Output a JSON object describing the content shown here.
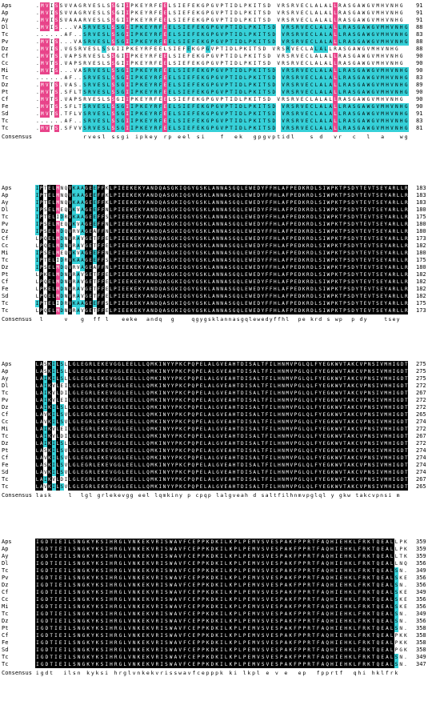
{
  "colors": {
    "identical": "#000000",
    "identical_text": "#ffffff",
    "high": "#e8448a",
    "high_text": "#ffffff",
    "medium": "#36d0d8",
    "medium_text": "#000000",
    "none": "#ffffff",
    "none_text": "#000000"
  },
  "consensus_label": "Consensus",
  "species": [
    "Aps",
    "Ap",
    "Ay",
    "Dl",
    "Tc",
    "Pv",
    "Dz",
    "Cf",
    "Cc",
    "Mi",
    "Tc",
    "Dz",
    "Pt",
    "Cf",
    "Fe",
    "Sd",
    "Tc",
    "Tc"
  ],
  "blocks": [
    {
      "end_numbers": [
        91,
        91,
        91,
        88,
        83,
        88,
        88,
        90,
        90,
        90,
        83,
        89,
        90,
        90,
        90,
        91,
        83,
        81
      ],
      "sequences": [
        ".MVISSVVAGRVESLSSGIIPKEYRFEELSIEFEKGPGVPTIDLPKITSD VRSRVECLALALLRASGAWGVMHVNHG",
        ".MVISSVVAGRVESLSSGIIPKEYRFEELSIEFEKGPGVPTIDLPKITSD VRSRVECLALALLRASGAWGVMHVNHG",
        ".MVISSVAAARVESLSSGIIPKEYRFEELSIEFEKGPGVPTIDLPKITSD VRSRVECLALALLRASGAWGVMHVNHG",
        ".MVIS...VASRVESLSSGIIPKEYRFEELSIEFEKGPGVPTIDLPKITSD VRSRVECLALALLRASGAWGVMHVNHG",
        "......AF..SRVESLSSGIIPKEYRFEELSIEFEKGPGVPTIDLPKITSD VRSRVECLALALLRASGAWGVMHVNHG",
        ".MVIS...VASRVESLSSGIIPKEYRFEELSIEFEKGPGVPTIDLPKITSD VRSRVECLALALLRASGAWGVMHVNHG",
        ".MVIS.VGSRVESLSSGIIPKEYRFEELSIEFEKGPGVPTIDLPKITSD VRSRVECLALALLRASGAWGVMHVNHG",
        ".MVTS.VAPSRVESLSSGIIPKEYRFEELSIEFEKGPGVPTIDLPKITSD VRSRVECLALALLRASGAWGVMHVNHG",
        ".MVTS.VAPSRVESLSSGIIPKEYRFEELSIEFEKGPGVPTIDLPKITSD VRSRVECLALALLRASGAWGVMHVNHG",
        ".MVIS...VASRVESLSSGIIPKEYRFEELSIEFEKGPGVPTIDLPKITSD VRSRVECLALALLRASGAWGVMHVNHG",
        "......AF..SRVESLSSGIIPKEYRFEELSIEFEKGPGVPTIDLPKITSD VRSRVECLALALLRASGAWGVMHVNHG",
        ".MVTS.VAS.SRVESLSSGIIPKEYRFEELSIEFEKGPGVPTIDLPKITSD VRSRVECLALALLRASGAWGVMHVNHG",
        ".MVTS.SFLTSRVESLSSGIIPKEYRFEELSIEFEKGPGVPTIDLPKITSD VRSRVECLALALLRASGAWGVMHVNHG",
        ".MVTS.VAPSRVESLSSGIIPKEYRFEELSIEFEKGPGVPTIDLPKITSD VRSRVECLALALLRASGAWGVMHVNHG",
        ".MVTS.SFLTSRVESLSSGIIPKEYRFEELSIEFEKGPGVPTIDLPKITSD VRSRVECLALALLRASGAWGVMHVNHG",
        ".MVTS.TFLVSRVESLSSGIIPKEYRFEELSIEFEKGPGVPTIDLPKITSD VRSRVECLALALLRASGAWGVMHVNHG",
        "......AF..SRVESLSSGIIPKEYRFEELSIEFEKGPGVPTIDLPKITSD VRSRVECLALALLRASGAWGVMHVNHG",
        ".MVTS.SFVVSRVESLSSGIIPKEYRFEELSIEFEKGPGVPTIDLPKITSD VRSRVECLALALLRASGAWGVMHVNHG"
      ],
      "consensus": "          rvesl ssgi ipkey rp eel si   f  ek  gpgvptidl   s d  vr  c  l  a   wgvmh vnhg"
    },
    {
      "end_numbers": [
        183,
        183,
        183,
        180,
        175,
        180,
        180,
        173,
        182,
        180,
        175,
        180,
        182,
        182,
        182,
        182,
        175,
        173
      ],
      "sequences": [
        "IPTELMNQVKAAGEEFFKLPIEEKEKYANDQASGKIQGYGSKLANNASGQLEWEDYFFHLAFPEDKRDLSIWPKTPSDYTEVTSEYARLLR",
        "IPTELMNQVKAAGEEFFKLPIEEKEKYANDQASGKIQGYGSKLANNASGQLEWEDYFFHLAFPEDKRDLSIWPKTPSDYTEVTSEYARLLR",
        "IPTELMNQVKAAGEEFFKLPIEEKEKYANDQASGKIQGYGSKLANNASGQLEWEDYFFHLAFPEDKRDLSIWPKTPSDYTEVTSEYARLLR",
        "IPSELMEQVKVAGEEFFNLPIEEKEKYANDQASGKIQGYGSKLANNASGQLEWEDYFFHLAFPEDKRDLSIWPKTPSDYTEVTSEYARLLR",
        "IPTELIDRVKAAGEEFFSLPIEEKEKYANDQASGKIQGYGSKLANNASGQLEWEDYFFHLAFPEDKRDLSIWPKTPSDYTEVTSEYARLLR",
        "IPSELMEQVKVAGEEFFNLPIEEKEKYANDQASGKIQGYGSKLANNASGQLEWEDYFFHLAFPEDKRDLSIWPKTPSDYTEVTSEYARLLR",
        "IPSELMDQVRVAGEAFFNLPIEEKEKYANDQASGKIQGYGSKLANNASGQLEWEDYFFHLAFPEDKRDLSIWPKTPSDYTEVTSEYARLLR",
        "LPQELMDNVRAVGETFFELPIEEKEKYANDQASGKIQGYGSKLANNASGQLEWEDYFFHLAFPEDKRDLSIWPKTPSDYTEVTSEYARLLR",
        "LPQELMDNVRAVGETFFELPIEEKEKYANDQASGKIQGYGSKLANNASGQLEWEDYFFHLAFPEDKRDLSIWPKTPSDYTEVTSEYARLLR",
        "IPSELMEQVKVAGEEFFNLPIEEKEKYANDQASGKIQGYGSKLANNASGQLEWEDYFFHLAFPEDKRDLSIWPKTPSDYTEVTSEYARLLR",
        "IPTELIDRVKAAGEEFFSLPIEEKEKYANDQASGKIQGYGSKLANNASGQLEWEDYFFHLAFPEDKRDLSIWPKTPSDYTEVTSEYARLLR",
        "IPSELMDQVRVAGEAFFNLPIEEKEKYANDQASGKIQGYGSKLANNASGQLEWEDYFFHLAFPEDKRDLSIWPKTPSDYTEVTSEYARLLR",
        "LPKELMDNVRAVGETFFELPIEEKEKYANDQASGKIQGYGSKLANNASGQLEWEDYFFHLAFPEDKRDLSIWPKTPSDYTEVTSEYARLLR",
        "LPQELMDNVRAVGETFFELPIEEKEKYANDQASGKIQGYGSKLANNASGQLEWEDYFFHLAFPEDKRDLSIWPKTPSDYTEVTSEYARLLR",
        "LPKELMDNVRAVGETFFELPIEEKEKYANDQASGKIQGYGSKLANNASGQLEWEDYFFHLAFPEDKRDLSIWPKTPSDYTEVTSEYARLLR",
        "LPQELMDNVRAVGETFFELPIEEKEKYANDQASGKIQGYGSKLANNASGQLEWEDYFFHLAFPEDKRDLSIWPKTPSDYTEVTSEYARLLR",
        "IPTELIDRVKAAGEEFFSLPIEEKEKYANDQASGKIQGYGSKLANNASGQLEWEDYFFHLAFPEDKRDLSIWPKTPSDYTEVTSEYARLLR",
        "LPQELMDNVRAVGETFFELPIEEKEKYANDQASGKIQGYGSKLANNASGQLEWEDYFFHLAFPEDKRDLSIWPKTPSDYTEVTSEYARLLR"
      ],
      "consensus": " l     v   g  ff l   eeke  andq  g    qgygsklannasgqlewedyffhl  pe krd s wp  p dy    tsey  l lr"
    },
    {
      "end_numbers": [
        275,
        275,
        275,
        272,
        267,
        272,
        272,
        265,
        274,
        272,
        267,
        272,
        274,
        274,
        274,
        274,
        267,
        265
      ],
      "sequences": [
        "LASKILSLLGLEGRLEKEVGGLEELLLQMKINYYPKCPQPELALGVEAHTDISALTFILHNMVPGLQLFYEGKWVTAKCVPNSIVMHIGDT",
        "LASKILSLLGLEGRLEKEVGGLEELLLQMKINYYPKCPQPELALGVEAHTDISALTFILHNMVPGLQLFYEGKWVTAKCVPNSIVMHIGDT",
        "LAIKILSLLGLEGRLEKEVGGLEELLLQMKINYYPKCPQPELALGVEAHTDISALTFILHNMVPGLQLFYEGKWVTAKCVPNSIVMHIGDT",
        "LAIKVLEILGLEGRLEKEVGGLEELLLQMKINYYPKCPQPELALGVEAHTDISALTFILHNMVPGLQLFYEGKWVTAKCVPNSIVMHIGDT",
        "LAIKVLDILGLEGRLEKEVGGLEELLLQMKINYYPKCPQPELALGVEAHTDISALTFILHNMVPGLQLFYEGKWVTAKCVPNSIVMHIGDT",
        "LAIKVLEILGLEGRLEKEVGGLEELLLQMKINYYPKCPQPELALGVEAHTDISALTFILHNMVPGLQLFYEGKWVTAKCVPNSIVMHIGDT",
        "LAIKILSLLGLEGRLEKEVGGLEELLLQMKINYYPKCPQPELALGVEAHTDISALTFILHNMVPGLQLFYEGKWVTAKCVPNSIVMHIGDT",
        "LAVKILSVLGLEGRLEKEVGGLEELLLQMKINYYPKCPQPELALGVEAHTDISALTFILHNMVPGLQLFYEGKWVTAKCVPNSIVMHIGDT",
        "LAVKILSVLGLEGRLEKEVGGLEELLLQMKINYYPKCPQPELALGVEAHTDISALTFILHNMVPGLQLFYEGKWVTAKCVPNSIVMHIGDT",
        "LAIKVLEILGLEGRLEKEVGGLEELLLQMKINYYPKCPQPELALGVEAHTDISALTFILHNMVPGLQLFYEGKWVTAKCVPNSIVMHIGDT",
        "LAIKVLDILGLEGRLEKEVGGLEELLLQMKINYYPKCPQPELALGVEAHTDISALTFILHNMVPGLQLFYEGKWVTAKCVPNSIVMHIGDT",
        "LAIKILSLLGLEGRLEKEVGGLEELLLQMKINYYPKCPQPELALGVEAHTDISALTFILHNMVPGLQLFYEGKWVTAKCVPNSIVMHIGDT",
        "LASKILSVLGLEGRLEKEVGGLEELLLQMKINYYPKCPQPELALGVEAHTDISALTFILHNMVPGLQLFYEGKWVTAKCVPNSIVMHIGDT",
        "LAVKILSVLGLEGRLEKEVGGLEELLLQMKINYYPKCPQPELALGVEAHTDISALTFILHNMVPGLQLFYEGKWVTAKCVPNSIVMHIGDT",
        "LASKILSVLGLEGRLEKEVGGLEELLLQMKINYYPKCPQPELALGVEAHTDISALTFILHNMVPGLQLFYEGKWVTAKCVPNSIVMHIGDT",
        "LAVKILSVLGLEGRLEKEVGGLEELLLQMKINYYPKCPQPELALGVEAHTDISALTFILHNMVPGLQLFYEGKWVTAKCVPNSIVMHIGDT",
        "LAIKVLDILGLEGRLEKEVGGLEELLLQMKINYYPKCPQPELALGVEAHTDISALTFILHNMVPGLQLFYEGKWVTAKCVPNSIVMHIGDT",
        "LAVKILSVLGLEGRLEKEVGGLEELLLQMKINYYPKCPQPELALGVEAHTDISALTFILHNMVPGLQLFYEGKWVTAKCVPNSIVMHIGDT"
      ],
      "consensus": "lask    l  lgl grlekevgg eel lqmkiny p cpqp lalgveah d saltfilhnmvpglql y gkw takcvpnsi m"
    },
    {
      "end_numbers": [
        359,
        359,
        359,
        356,
        349,
        356,
        356,
        349,
        356,
        356,
        349,
        356,
        358,
        358,
        358,
        358,
        349,
        347
      ],
      "sequences": [
        "IGDTIEILSNGKYKSIHRGLVNKEKVRISWAVFCEPPKDKILKPLPEMVSVESPAKFPPRTFAQHIEHKLFRKTQEALLPK",
        "IGDTIEILSNGKYKSIHRGLVNKEKVRISWAVFCEPPKDKILKPLPEMVSVESPAKFPPRTFAQHIEHKLFRKTQEALLPK",
        "IGDTIEILSNGKYKSIHRGLVNKEKVRISWAVFCEPPKDKILKPLPEMVSVESPAKFPPRTFAQHIEHKLFRKTQEALLTK",
        "IGDTIEILSNGKYKSIHRGLVNKEKVRISWAVFCEPPKDKILKPLPEMVSVESPAKFPPRTFAQHIEHKLFRKTQEALLNQ",
        "IGDTIEILSNGKYKSIHRGLVNKEKVRISWAVFCEPPKDKILKPLPEMVSVESPAKFPPRTFAQHIEHKLFRKTQEALSN.",
        "IGDTIEILSNGKYKSIHRGLVNKEKVRISWAVFCEPPKDKILKPLPEMVSVESPAKFPPRTFAQHIEHKLFRKTQEALSKE",
        "IGDTIEILSNGKYKSIHRGLVNKEKVRISWAVFCEPPKDKILKPLPEMVSVESPAKFPPRTFAQHIEHKLFRKTQEALSN.",
        "IGDTIEILSNGKYKSIHRGLVNKEKVRISWAVFCEPPKDKILKPLPEMVSVESPAKFPPRTFAQHIEHKLFRKTQEALSKE",
        "IGDTIEILSNGKYKSIHRGLVNKEKVRISWAVFCEPPKDKILKPLPEMVSVESPAKFPPRTFAQHIEHKLFRKTQEALSKE",
        "IGDTIEILSNGKYKSIHRGLVNKEKVRISWAVFCEPPKDKILKPLPEMVSVESPAKFPPRTFAQHIEHKLFRKTQEALSKE",
        "IGDTIEILSNGKYKSIHRGLVNKEKVRISWAVFCEPPKDKILKPLPEMVSVESPAKFPPRTFAQHIEHKLFRKTQEALSN.",
        "IGDTIEILSNGKYKSIHRGLVNKEKVRISWAVFCEPPKDKILKPLPEMVSVESPAKFPPRTFAQHIEHKLFRKTQEALSN.",
        "IGDTIEILSNGKYKSIHRGLVNKEKVRISWAVFCEPPKDKILKPLPEMVSVESPAKFPPRTFAQHIEHKLFRKTQEALSN.",
        "IGDTIEILSNGKYKSIHRGLVNKEKVRISWAVFCEPPKDKILKPLPEMVSVESPAKFPPRTFAQHIEHKLFRKTQEALPKK",
        "IGDTIEILSNGKYKSIHRGLVNKEKVRISWAVFCEPPKDKILKPLPEMVSVESPAKFPPRTFAQHIEHKLFRKTQEALPKK",
        "IGDTIEILSNGKYKSIHRGLVNKEKVRISWAVFCEPPKDKILKPLPEMVSVESPAKFPPRTFAQHIEHKLFRKTQEALPGK",
        "IGDTIEILSNGKYKSIHRGLVNKEKVRISWAVFCEPPKDKILKPLPEMVSVESPAKFPPRTFAQHIEHKLFRKTQEALSN.",
        "IGDTIEILSNGKYKSIHRGLVNKEKVRISWAVFCEPPKDKILKPLPEMVSVESPAKFPPRTFAQHIEHKLFRKTQEALSN."
      ],
      "consensus": "igdt  ilsn kyksi hrglvnkekvrisswavfcepppk ki lkpl e v e  ep  fpprtf  qhi hklfrk    l"
    }
  ]
}
